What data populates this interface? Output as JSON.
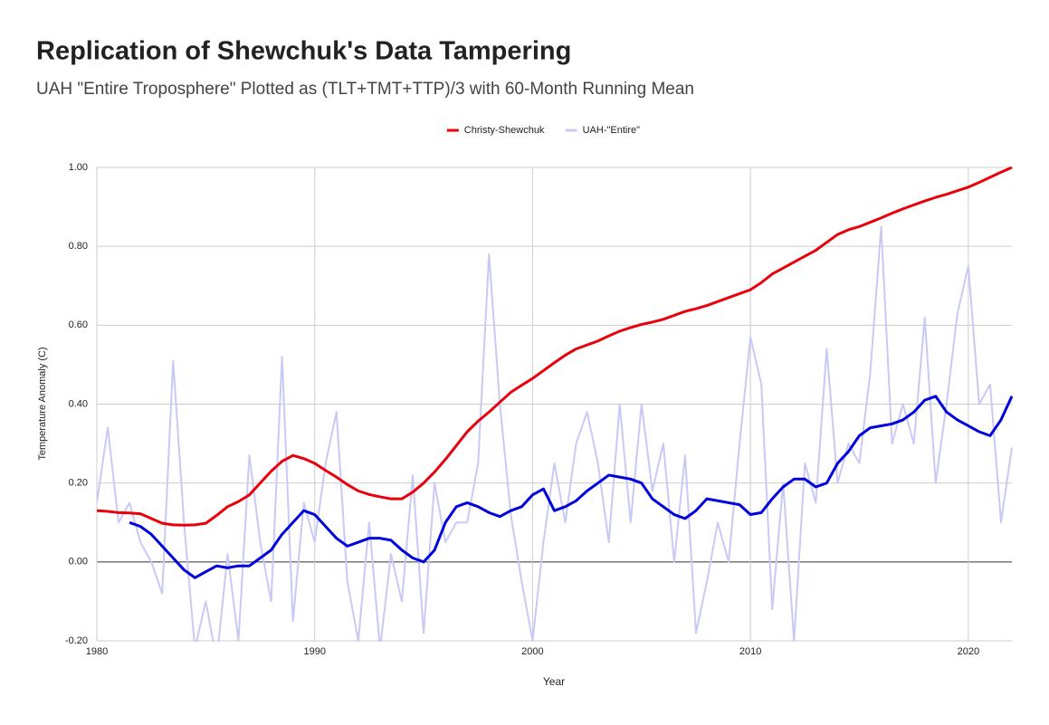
{
  "chart_data": {
    "type": "line",
    "title": "Replication of Shewchuk's Data Tampering",
    "subtitle": "UAH \"Entire Troposphere\" Plotted as (TLT+TMT+TTP)/3 with 60-Month Running Mean",
    "x_label": "Year",
    "y_label": "Temperature Anomaly (C)",
    "xlim": [
      1980,
      2022
    ],
    "ylim": [
      -0.2,
      1.0
    ],
    "xticks": [
      1980,
      1990,
      2000,
      2010,
      2020
    ],
    "yticks": [
      {
        "value": -0.2,
        "label": "-0.20"
      },
      {
        "value": 0,
        "label": "0.00"
      },
      {
        "value": 0.2,
        "label": "0.20"
      },
      {
        "value": 0.4,
        "label": "0.40"
      },
      {
        "value": 0.6,
        "label": "0.60"
      },
      {
        "value": 0.8,
        "label": "0.80"
      },
      {
        "value": 1.0,
        "label": "1.00"
      }
    ],
    "grid": true,
    "legend": "top",
    "x": [
      1980,
      1980.5,
      1981,
      1981.5,
      1982,
      1982.5,
      1983,
      1983.5,
      1984,
      1984.5,
      1985,
      1985.5,
      1986,
      1986.5,
      1987,
      1987.5,
      1988,
      1988.5,
      1989,
      1989.5,
      1990,
      1990.5,
      1991,
      1991.5,
      1992,
      1992.5,
      1993,
      1993.5,
      1994,
      1994.5,
      1995,
      1995.5,
      1996,
      1996.5,
      1997,
      1997.5,
      1998,
      1998.5,
      1999,
      1999.5,
      2000,
      2000.5,
      2001,
      2001.5,
      2002,
      2002.5,
      2003,
      2003.5,
      2004,
      2004.5,
      2005,
      2005.5,
      2006,
      2006.5,
      2007,
      2007.5,
      2008,
      2008.5,
      2009,
      2009.5,
      2010,
      2010.5,
      2011,
      2011.5,
      2012,
      2012.5,
      2013,
      2013.5,
      2014,
      2014.5,
      2015,
      2015.5,
      2016,
      2016.5,
      2017,
      2017.5,
      2018,
      2018.5,
      2019,
      2019.5,
      2020,
      2020.5,
      2021,
      2021.5,
      2022
    ],
    "series": [
      {
        "name": "UAH-\"Entire\"",
        "color": "#c9c9f7",
        "width": 2,
        "values": [
          0.15,
          0.34,
          0.1,
          0.15,
          0.05,
          0.0,
          -0.08,
          0.51,
          0.1,
          -0.22,
          -0.1,
          -0.25,
          0.02,
          -0.2,
          0.27,
          0.05,
          -0.1,
          0.52,
          -0.15,
          0.15,
          0.05,
          0.25,
          0.38,
          -0.05,
          -0.2,
          0.1,
          -0.22,
          0.02,
          -0.1,
          0.22,
          -0.18,
          0.2,
          0.05,
          0.1,
          0.1,
          0.25,
          0.78,
          0.4,
          0.12,
          -0.05,
          -0.2,
          0.05,
          0.25,
          0.1,
          0.3,
          0.38,
          0.25,
          0.05,
          0.4,
          0.1,
          0.4,
          0.18,
          0.3,
          0.0,
          0.27,
          -0.18,
          -0.05,
          0.1,
          0.0,
          0.3,
          0.57,
          0.45,
          -0.12,
          0.2,
          -0.2,
          0.25,
          0.15,
          0.54,
          0.2,
          0.3,
          0.25,
          0.48,
          0.85,
          0.3,
          0.4,
          0.3,
          0.62,
          0.2,
          0.4,
          0.63,
          0.75,
          0.4,
          0.45,
          0.1,
          0.29
        ]
      },
      {
        "name": "Christy-Shewchuk",
        "color": "#e8000b",
        "width": 3,
        "values": [
          0.13,
          0.128,
          0.125,
          0.124,
          0.122,
          0.11,
          0.098,
          0.094,
          0.093,
          0.094,
          0.098,
          0.118,
          0.14,
          0.153,
          0.17,
          0.2,
          0.23,
          0.255,
          0.27,
          0.262,
          0.25,
          0.232,
          0.215,
          0.196,
          0.18,
          0.171,
          0.165,
          0.16,
          0.16,
          0.177,
          0.2,
          0.228,
          0.26,
          0.295,
          0.33,
          0.357,
          0.38,
          0.405,
          0.43,
          0.448,
          0.465,
          0.485,
          0.505,
          0.524,
          0.54,
          0.55,
          0.56,
          0.573,
          0.585,
          0.594,
          0.602,
          0.608,
          0.615,
          0.625,
          0.635,
          0.642,
          0.65,
          0.66,
          0.67,
          0.68,
          0.69,
          0.708,
          0.73,
          0.745,
          0.76,
          0.775,
          0.79,
          0.81,
          0.83,
          0.842,
          0.85,
          0.861,
          0.872,
          0.884,
          0.895,
          0.905,
          0.915,
          0.924,
          0.932,
          0.941,
          0.95,
          0.962,
          0.975,
          0.988,
          1.0
        ]
      },
      {
        "color": "#0000dd",
        "width": 3,
        "values": [
          null,
          null,
          null,
          0.1,
          0.09,
          0.07,
          0.04,
          0.01,
          -0.02,
          -0.04,
          -0.025,
          -0.01,
          -0.015,
          -0.01,
          -0.01,
          0.01,
          0.03,
          0.07,
          0.1,
          0.13,
          0.12,
          0.09,
          0.06,
          0.04,
          0.05,
          0.06,
          0.06,
          0.055,
          0.03,
          0.01,
          0.0,
          0.03,
          0.1,
          0.14,
          0.15,
          0.14,
          0.125,
          0.115,
          0.13,
          0.14,
          0.17,
          0.185,
          0.13,
          0.14,
          0.155,
          0.18,
          0.2,
          0.22,
          0.215,
          0.21,
          0.2,
          0.16,
          0.14,
          0.12,
          0.11,
          0.13,
          0.16,
          0.155,
          0.15,
          0.145,
          0.12,
          0.125,
          0.16,
          0.19,
          0.21,
          0.21,
          0.19,
          0.2,
          0.25,
          0.28,
          0.32,
          0.34,
          0.345,
          0.35,
          0.36,
          0.38,
          0.41,
          0.42,
          0.38,
          0.36,
          0.345,
          0.33,
          0.32,
          0.36,
          0.42
        ]
      }
    ]
  }
}
